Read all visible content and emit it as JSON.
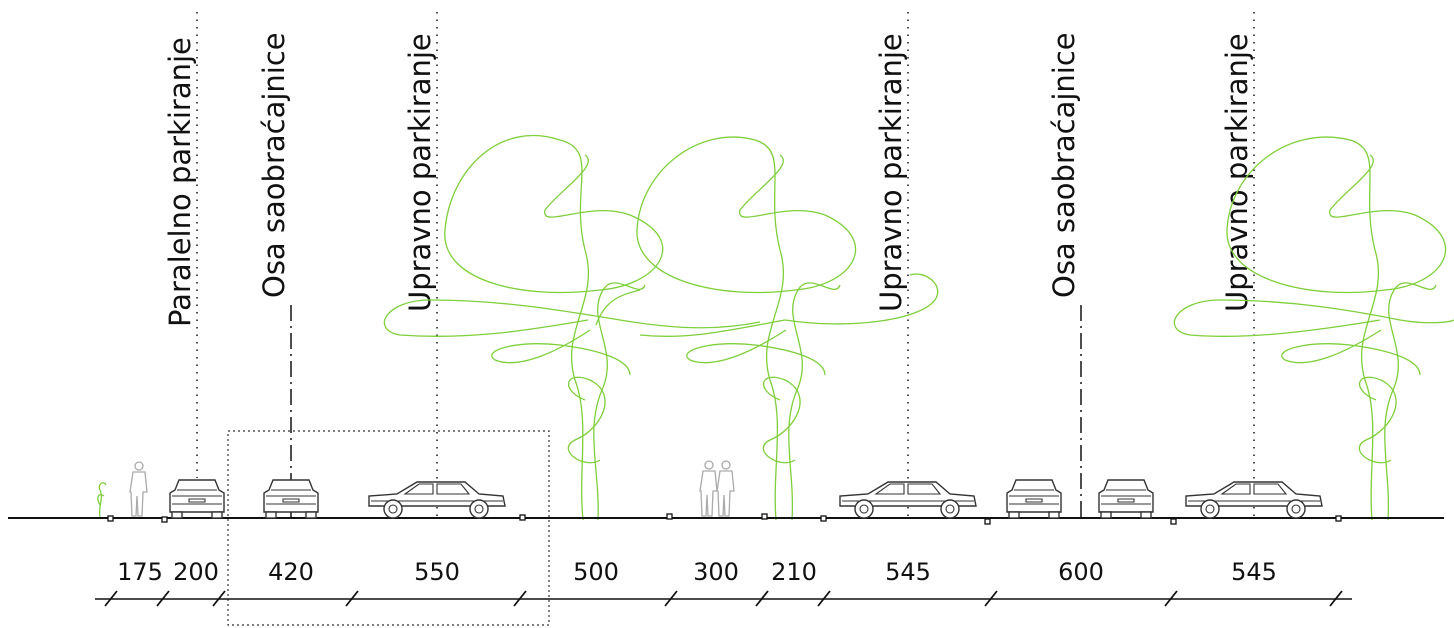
{
  "labels": {
    "paralelno": "Paralelno parkiranje",
    "osa_1": "Osa saobraćajnice",
    "upravno_1": "Upravno parkiranje",
    "upravno_2": "Upravno parkiranje",
    "osa_2": "Osa saobraćajnice",
    "upravno_3": "Upravno parkiranje"
  },
  "dimensions": [
    "175",
    "200",
    "420",
    "550",
    "500",
    "300",
    "210",
    "545",
    "600",
    "545"
  ],
  "icons": [
    "shrub-icon",
    "pedestrian-icon",
    "car-rear-icon",
    "car-side-icon",
    "tree-icon",
    "pedestrians-icon",
    "curb-marker-icon"
  ],
  "colors": {
    "tree": "#7ecf3a",
    "lines": "#111111",
    "pedestrian": "#aaaaaa"
  }
}
